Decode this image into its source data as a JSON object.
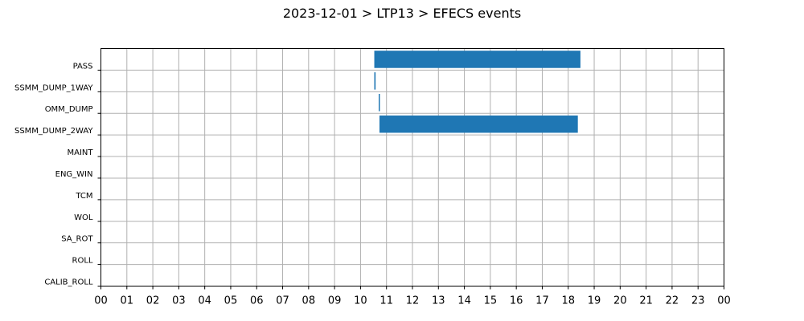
{
  "chart_data": {
    "type": "bar",
    "orientation": "horizontal-gantt",
    "title": "2023-12-01 > LTP13 > EFECS events",
    "xlabel": "",
    "ylabel": "",
    "x_unit": "hour",
    "xlim": [
      0,
      24
    ],
    "x_tick_labels": [
      "00",
      "01",
      "02",
      "03",
      "04",
      "05",
      "06",
      "07",
      "08",
      "09",
      "10",
      "11",
      "12",
      "13",
      "14",
      "15",
      "16",
      "17",
      "18",
      "19",
      "20",
      "21",
      "22",
      "23",
      "00"
    ],
    "categories": [
      "PASS",
      "SSMM_DUMP_1WAY",
      "OMM_DUMP",
      "SSMM_DUMP_2WAY",
      "MAINT",
      "ENG_WIN",
      "TCM",
      "WOL",
      "SA_ROT",
      "ROLL",
      "CALIB_ROLL"
    ],
    "events": [
      {
        "category": "PASS",
        "start": 10.53,
        "end": 18.47
      },
      {
        "category": "SSMM_DUMP_1WAY",
        "start": 10.53,
        "end": 10.58
      },
      {
        "category": "OMM_DUMP",
        "start": 10.7,
        "end": 10.73
      },
      {
        "category": "SSMM_DUMP_2WAY",
        "start": 10.73,
        "end": 18.37
      }
    ],
    "bar_color": "#1f77b4",
    "grid": true,
    "legend": "none"
  }
}
